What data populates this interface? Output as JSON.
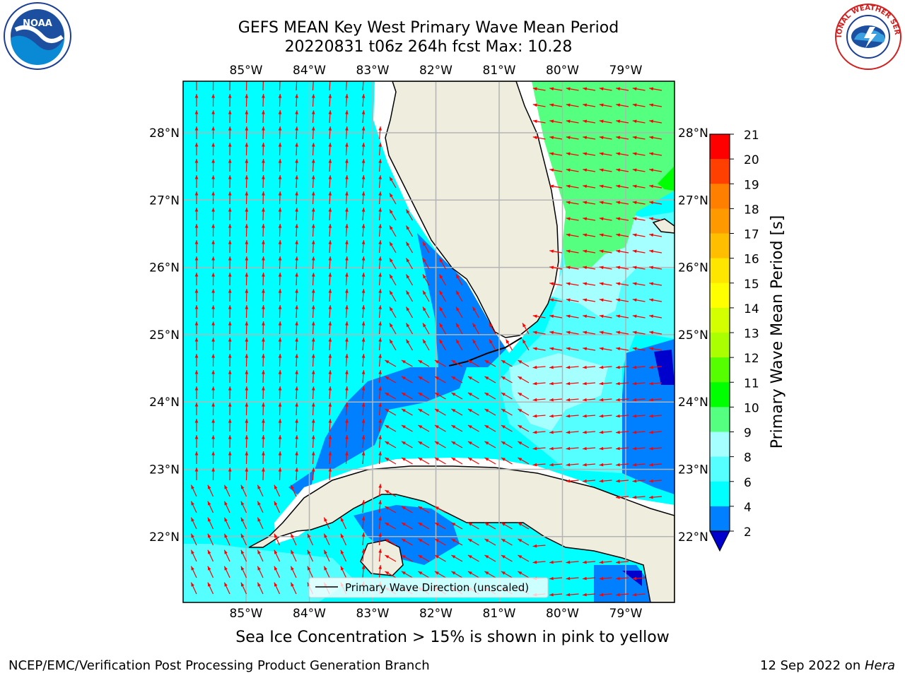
{
  "title": {
    "line1": "GEFS MEAN Key West Primary Wave Mean Period",
    "line2": "20220831 t06z 264h fcst   Max: 10.28"
  },
  "map": {
    "lon_ticks": [
      "85°W",
      "84°W",
      "83°W",
      "82°W",
      "81°W",
      "80°W",
      "79°W"
    ],
    "lat_ticks": [
      "28°N",
      "27°N",
      "26°N",
      "25°N",
      "24°N",
      "23°N",
      "22°N"
    ],
    "legend_label": "Primary Wave Direction (unscaled)",
    "colors": {
      "land": "#efedde",
      "band_2_4": "#0080ff",
      "band_4_6": "#00ffff",
      "band_6_8": "#55ffff",
      "band_8_9": "#a6ffff",
      "band_9_10": "#55ff80",
      "arrow": "#ff0000",
      "grid": "#b4b4b4"
    }
  },
  "colorbar": {
    "label": "Primary Wave Mean Period [s]",
    "ticks": [
      "2",
      "4",
      "6",
      "8",
      "9",
      "10",
      "11",
      "12",
      "13",
      "14",
      "15",
      "16",
      "17",
      "18",
      "19",
      "20",
      "21"
    ],
    "colors": [
      "#0080ff",
      "#00ffff",
      "#55ffff",
      "#a6ffff",
      "#55ff80",
      "#00ff00",
      "#55ff00",
      "#aaff00",
      "#d4ff00",
      "#ffff00",
      "#ffe600",
      "#ffbf00",
      "#ff9900",
      "#ff7f00",
      "#ff4000",
      "#ff0000"
    ],
    "under_color": "#0000cc"
  },
  "note": "Sea Ice Concentration > 15% is shown in pink to yellow",
  "footer": {
    "left": "NCEP/EMC/Verification Post Processing Product Generation Branch",
    "date": "12 Sep 2022 on ",
    "machine": "Hera"
  },
  "logos": {
    "noaa_text": "NOAA",
    "nws_text": "NATIONAL WEATHER SERVICE"
  }
}
